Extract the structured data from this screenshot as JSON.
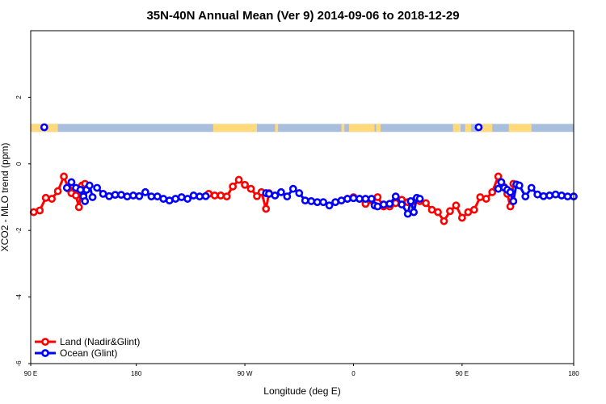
{
  "chart_data": {
    "type": "line",
    "title": "35N-40N Annual Mean (Ver 9)   2014-09-06 to 2018-12-29",
    "xlabel": "Longitude (deg E)",
    "ylabel": "XCO2 - MLO trend (ppm)",
    "xlim": [
      90,
      450
    ],
    "ylim": [
      -6,
      4
    ],
    "x_ticks": [
      {
        "value": 90,
        "label": "90 E"
      },
      {
        "value": 160,
        "label": "180"
      },
      {
        "value": 232,
        "label": "90 W"
      },
      {
        "value": 304,
        "label": "0"
      },
      {
        "value": 376,
        "label": "90 E"
      },
      {
        "value": 450,
        "label": "180"
      }
    ],
    "y_ticks": [
      {
        "value": 2,
        "label": "2"
      },
      {
        "value": 0,
        "label": "0"
      },
      {
        "value": -2,
        "label": "-2"
      },
      {
        "value": -4,
        "label": "-4"
      },
      {
        "value": -6,
        "label": "-6"
      }
    ],
    "land_sea_strip": {
      "y": 1.08,
      "land_color": "#FFD97A",
      "ocean_color": "#A8BEDC",
      "land_segments": [
        [
          90,
          99
        ],
        [
          100,
          108
        ],
        [
          211,
          240
        ],
        [
          252,
          254
        ],
        [
          296,
          298
        ],
        [
          301,
          318
        ],
        [
          319,
          322
        ],
        [
          370,
          375
        ],
        [
          378,
          382
        ],
        [
          387,
          396
        ],
        [
          407,
          422
        ]
      ]
    },
    "strip_markers": [
      {
        "x": 99,
        "y": 1.1
      },
      {
        "x": 387,
        "y": 1.1
      }
    ],
    "series": [
      {
        "name": "Land (Nadir&Glint)",
        "color": "#FF0000",
        "segments": [
          {
            "x": [
              92,
              96,
              100,
              104,
              108,
              112,
              115,
              117,
              120,
              122,
              124,
              126,
              128
            ],
            "y": [
              -1.45,
              -1.4,
              -1.02,
              -1.05,
              -0.82,
              -0.38,
              -0.75,
              -0.88,
              -0.95,
              -1.3,
              -0.65,
              -0.6,
              -0.72
            ]
          },
          {
            "x": [
              208,
              212,
              216,
              220,
              224,
              228,
              232,
              236,
              240,
              243,
              246,
              248
            ],
            "y": [
              -0.9,
              -0.95,
              -0.95,
              -0.98,
              -0.68,
              -0.48,
              -0.63,
              -0.75,
              -0.97,
              -0.85,
              -1.35,
              -0.88
            ]
          },
          {
            "x": [
              300,
              304,
              308,
              312,
              316,
              320,
              324,
              328,
              332,
              336,
              340,
              344,
              348,
              352,
              356,
              360,
              364,
              368,
              372,
              376,
              380,
              384,
              388,
              392,
              396,
              400,
              402,
              404,
              406,
              408,
              410,
              412
            ],
            "y": [
              -1.05,
              -1.0,
              -1.05,
              -1.2,
              -1.1,
              -1.0,
              -1.28,
              -1.28,
              -1.18,
              -1.08,
              -1.15,
              -1.12,
              -1.12,
              -1.18,
              -1.38,
              -1.45,
              -1.72,
              -1.42,
              -1.25,
              -1.62,
              -1.45,
              -1.38,
              -1.0,
              -1.05,
              -0.85,
              -0.38,
              -0.55,
              -0.7,
              -0.9,
              -1.28,
              -0.6,
              -0.62
            ]
          }
        ]
      },
      {
        "name": "Ocean (Glint)",
        "color": "#0000FF",
        "segments": [
          {
            "x": [
              114,
              117,
              120,
              123,
              125,
              126,
              127,
              129,
              131
            ],
            "y": [
              -0.72,
              -0.55,
              -0.72,
              -0.78,
              -0.98,
              -1.12,
              -0.78,
              -0.65,
              -1.0
            ]
          },
          {
            "x": [
              134,
              138,
              142,
              146,
              150,
              154,
              158,
              162,
              166,
              170,
              174,
              178,
              182,
              186,
              190,
              194,
              198,
              202,
              206
            ],
            "y": [
              -0.72,
              -0.9,
              -0.97,
              -0.93,
              -0.93,
              -0.98,
              -0.95,
              -0.97,
              -0.85,
              -0.98,
              -0.98,
              -1.05,
              -1.1,
              -1.05,
              -1.0,
              -1.05,
              -0.95,
              -0.98,
              -0.97
            ]
          },
          {
            "x": [
              246,
              248,
              252,
              256,
              260,
              264,
              268,
              272,
              276,
              280,
              284,
              288,
              292,
              296,
              300,
              304,
              308,
              312,
              316,
              318,
              320,
              324,
              328,
              332,
              336,
              340,
              342,
              344,
              346,
              348
            ],
            "y": [
              -0.88,
              -0.9,
              -0.95,
              -0.85,
              -0.98,
              -0.75,
              -0.88,
              -1.1,
              -1.12,
              -1.15,
              -1.15,
              -1.25,
              -1.15,
              -1.1,
              -1.05,
              -1.03,
              -1.05,
              -1.05,
              -1.05,
              -1.25,
              -1.28,
              -1.22,
              -1.2,
              -0.98,
              -1.22,
              -1.5,
              -1.12,
              -1.45,
              -1.02,
              -1.05
            ]
          },
          {
            "x": [
              400,
              402,
              404,
              406,
              408,
              410,
              412,
              414,
              418,
              422,
              426,
              430,
              434,
              438,
              442,
              446,
              450
            ],
            "y": [
              -0.75,
              -0.55,
              -0.72,
              -0.78,
              -0.85,
              -1.12,
              -0.62,
              -0.65,
              -0.98,
              -0.72,
              -0.92,
              -0.97,
              -0.95,
              -0.92,
              -0.95,
              -0.98,
              -0.98
            ]
          }
        ]
      }
    ],
    "legend": {
      "placement": "bottom-left",
      "entries": [
        "Land (Nadir&Glint)",
        "Ocean (Glint)"
      ]
    }
  }
}
